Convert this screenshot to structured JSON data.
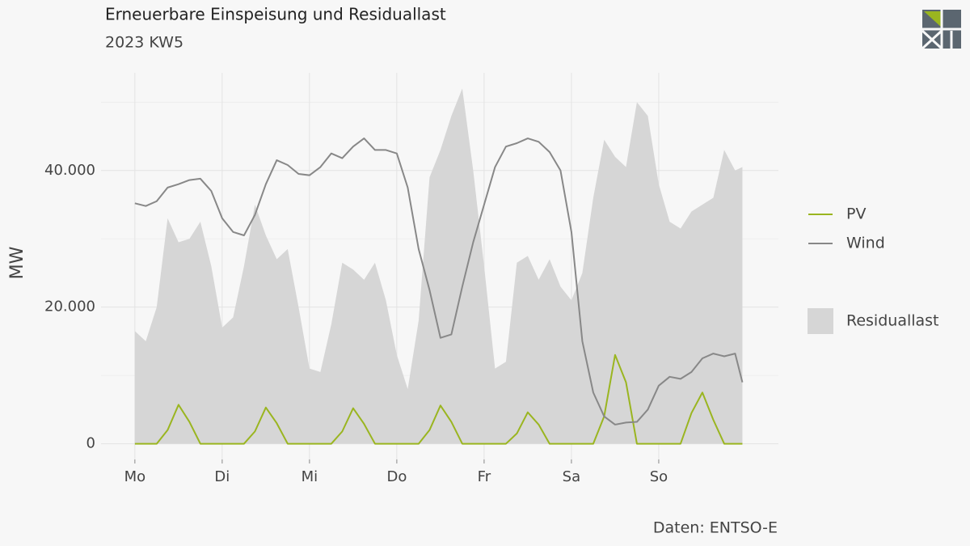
{
  "chart_data": {
    "type": "line",
    "title": "Erneuerbare Einspeisung und Residuallast",
    "subtitle": "2023 KW5",
    "ylabel": "MW",
    "source": "Daten: ENTSO-E",
    "x": [
      0,
      3,
      6,
      9,
      12,
      15,
      18,
      21,
      24,
      27,
      30,
      33,
      36,
      39,
      42,
      45,
      48,
      51,
      54,
      57,
      60,
      63,
      66,
      69,
      72,
      75,
      78,
      81,
      84,
      87,
      90,
      93,
      96,
      99,
      102,
      105,
      108,
      111,
      114,
      117,
      120,
      123,
      126,
      129,
      132,
      135,
      138,
      141,
      144,
      147,
      150,
      153,
      156,
      159,
      162,
      165,
      167
    ],
    "xlim": [
      -9.3,
      176.9
    ],
    "xticks": [
      {
        "value": 0,
        "label": "Mo"
      },
      {
        "value": 24,
        "label": "Di"
      },
      {
        "value": 48,
        "label": "Mi"
      },
      {
        "value": 72,
        "label": "Do"
      },
      {
        "value": 96,
        "label": "Fr"
      },
      {
        "value": 120,
        "label": "Sa"
      },
      {
        "value": 144,
        "label": "So"
      }
    ],
    "ylim": [
      -2300,
      54300
    ],
    "yticks": [
      0,
      {
        "value": 20000,
        "label": "20.000"
      },
      {
        "value": 40000,
        "label": "40.000"
      }
    ],
    "minor_yticks": [
      10000,
      30000,
      50000
    ],
    "grid": true,
    "legend": "right",
    "series": [
      {
        "name": "Residuallast",
        "type": "area",
        "color": "#d6d6d6",
        "values": [
          16500,
          15000,
          20000,
          33000,
          29500,
          30000,
          32500,
          26000,
          17000,
          18500,
          26000,
          35000,
          30500,
          27000,
          28500,
          20000,
          11000,
          10500,
          17500,
          26500,
          25500,
          24000,
          26500,
          21000,
          13000,
          8000,
          18000,
          39000,
          43000,
          48000,
          52000,
          40000,
          26000,
          11000,
          12000,
          26500,
          27500,
          24000,
          27000,
          23000,
          21000,
          25000,
          36000,
          44500,
          42000,
          40500,
          50000,
          48000,
          38000,
          32500,
          31500,
          34000,
          35000,
          36000,
          43000,
          40000,
          40500
        ]
      },
      {
        "name": "PV",
        "type": "line",
        "color": "#9ab520",
        "values": [
          0,
          0,
          0,
          2000,
          5700,
          3200,
          0,
          0,
          0,
          0,
          0,
          1800,
          5300,
          3000,
          0,
          0,
          0,
          0,
          0,
          1800,
          5200,
          2900,
          0,
          0,
          0,
          0,
          0,
          2000,
          5600,
          3200,
          0,
          0,
          0,
          0,
          0,
          1500,
          4600,
          2800,
          0,
          0,
          0,
          0,
          0,
          4000,
          13000,
          9000,
          0,
          0,
          0,
          0,
          0,
          4500,
          7500,
          3500,
          0,
          0,
          0
        ]
      },
      {
        "name": "Wind",
        "type": "line",
        "color": "#888888",
        "values": [
          35200,
          34800,
          35500,
          37500,
          38000,
          38600,
          38800,
          37000,
          33000,
          31000,
          30500,
          33500,
          38000,
          41500,
          40800,
          39500,
          39300,
          40500,
          42500,
          41800,
          43500,
          44700,
          43000,
          43000,
          42500,
          37500,
          28500,
          22500,
          15500,
          16000,
          23000,
          29500,
          35000,
          40500,
          43500,
          44000,
          44700,
          44200,
          42700,
          40000,
          31000,
          15000,
          7500,
          4000,
          2800,
          3100,
          3200,
          5000,
          8500,
          9800,
          9500,
          10500,
          12500,
          13200,
          12800,
          13200,
          9000
        ]
      }
    ]
  }
}
